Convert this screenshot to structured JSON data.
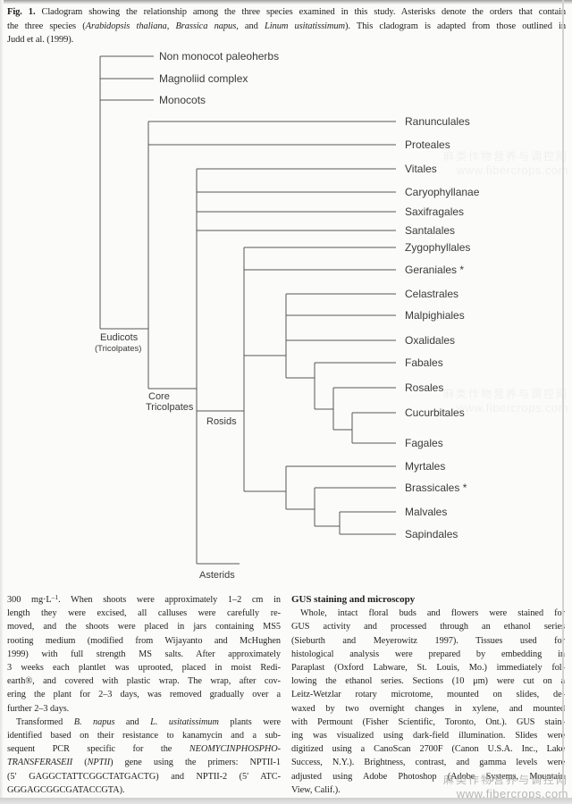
{
  "caption": {
    "paragraphs": [
      {
        "indent": false,
        "lines": [
          [
            [
              "b",
              "Fig. 1."
            ],
            [
              "t",
              " Cladogram showing the relationship among the three species examined in this study. Asterisks denote the orders that contain"
            ]
          ],
          [
            [
              "t",
              "the three species ("
            ],
            [
              "i",
              "Arabidopsis thaliana"
            ],
            [
              "t",
              ", "
            ],
            [
              "i",
              "Brassica napus"
            ],
            [
              "t",
              ", and "
            ],
            [
              "i",
              "Linum usitatissimum"
            ],
            [
              "t",
              "). This cladogram is adapted from those outlined in"
            ]
          ],
          [
            [
              "t",
              "Judd et al. (1999)."
            ]
          ]
        ]
      }
    ]
  },
  "cladogram": {
    "basal_taxa": [
      "Non monocot paleoherbs",
      "Magnoliid complex",
      "Monocots"
    ],
    "tips": [
      "Ranunculales",
      "Proteales",
      "Vitales",
      "Caryophyllanae",
      "Saxifragales",
      "Santalales",
      "Zygophyllales",
      "Geraniales *",
      "Celastrales",
      "Malpighiales",
      "Oxalidales",
      "Fabales",
      "Rosales",
      "Cucurbitales",
      "Fagales",
      "Myrtales",
      "Brassicales *",
      "Malvales",
      "Sapindales"
    ],
    "internal_labels": {
      "eudicots": "Eudicots",
      "eudicots_sub": "(Tricolpates)",
      "core_tricolpates": [
        "Core",
        "Tricolpates"
      ],
      "rosids": "Rosids",
      "asterids": "Asterids"
    }
  },
  "left_column": {
    "paragraphs": [
      {
        "indent": false,
        "lines": [
          [
            [
              "t",
              "300 mg·L"
            ],
            [
              "sup",
              "–1"
            ],
            [
              "t",
              ". When shoots were approximately 1–2 cm in"
            ]
          ],
          [
            [
              "t",
              "length they were excised, all calluses were carefully re-"
            ]
          ],
          [
            [
              "t",
              "moved, and the shoots were placed in jars containing MS5"
            ]
          ],
          [
            [
              "t",
              "rooting medium (modified from Wijayanto and McHughen"
            ]
          ],
          [
            [
              "t",
              "1999) with full strength MS salts. After approximately"
            ]
          ],
          [
            [
              "t",
              "3 weeks each plantlet was uprooted, placed in moist Redi-"
            ]
          ],
          [
            [
              "t",
              "earth®, and covered with plastic wrap. The wrap, after cov-"
            ]
          ],
          [
            [
              "t",
              "ering the plant for 2–3 days, was removed gradually over a"
            ]
          ],
          [
            [
              "t",
              "further 2–3 days."
            ]
          ]
        ]
      },
      {
        "indent": true,
        "lines": [
          [
            [
              "t",
              "Transformed "
            ],
            [
              "i",
              "B. napus"
            ],
            [
              "t",
              " and "
            ],
            [
              "i",
              "L. usitatissimum"
            ],
            [
              "t",
              " plants were"
            ]
          ],
          [
            [
              "t",
              "identified based on their resistance to kanamycin and a sub-"
            ]
          ],
          [
            [
              "t",
              "sequent PCR specific for the "
            ],
            [
              "i",
              "NEOMYCINPHOSPHO-"
            ]
          ],
          [
            [
              "i",
              "TRANSFERASEII"
            ],
            [
              "t",
              " ("
            ],
            [
              "i",
              "NPTII"
            ],
            [
              "t",
              ") gene using the primers: NPTII-1"
            ]
          ],
          [
            [
              "t",
              "(5′ GAGGCTATTCGGCTATGACTG) and NPTII-2 (5′ ATC-"
            ]
          ],
          [
            [
              "t",
              "GGGAGCGGCGATACCGTA)."
            ]
          ]
        ]
      }
    ]
  },
  "right_column": {
    "heading": "GUS staining and microscopy",
    "paragraphs": [
      {
        "indent": true,
        "lines": [
          [
            [
              "t",
              "Whole, intact floral buds and flowers were stained for"
            ]
          ],
          [
            [
              "t",
              "GUS activity and processed through an ethanol series"
            ]
          ],
          [
            [
              "t",
              "(Sieburth and Meyerowitz 1997). Tissues used for"
            ]
          ],
          [
            [
              "t",
              "histological analysis were prepared by embedding in"
            ]
          ],
          [
            [
              "t",
              "Paraplast (Oxford Labware, St. Louis, Mo.) immediately fol-"
            ]
          ],
          [
            [
              "t",
              "lowing the ethanol series. Sections (10 μm) were cut on a"
            ]
          ],
          [
            [
              "t",
              "Leitz-Wetzlar rotary microtome, mounted on slides, de-"
            ]
          ],
          [
            [
              "t",
              "waxed by two overnight changes in xylene, and mounted"
            ]
          ],
          [
            [
              "t",
              "with Permount (Fisher Scientific, Toronto, Ont.). GUS stain-"
            ]
          ],
          [
            [
              "t",
              "ing was visualized using dark-field illumination. Slides were"
            ]
          ],
          [
            [
              "t",
              "digitized using a CanoScan 2700F (Canon U.S.A. Inc., Lake"
            ]
          ],
          [
            [
              "t",
              "Success, N.Y.). Brightness, contrast, and gamma levels were"
            ]
          ],
          [
            [
              "t",
              "adjusted using Adobe Photoshop (Adobe Systems, Mountain"
            ]
          ],
          [
            [
              "t",
              "View, Calif.)."
            ]
          ]
        ]
      }
    ]
  },
  "watermark": {
    "cn": "麻类作物营养与调控网",
    "url": "www.fibercrops.com"
  },
  "colors": {
    "text": "#1f1f1f",
    "tree_line": "#575757",
    "tree_label": "#3b3b3b",
    "watermark": "#a5a5a5"
  }
}
